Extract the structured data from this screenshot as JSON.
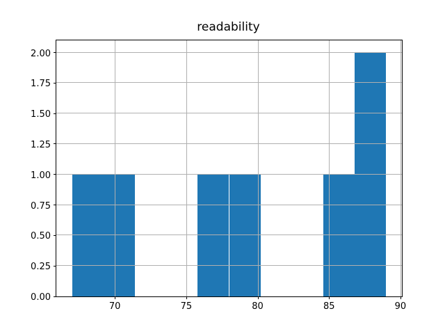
{
  "chart_data": {
    "type": "bar",
    "subtype": "histogram",
    "title": "readability",
    "xlabel": "",
    "ylabel": "",
    "bin_edges": [
      67.0,
      69.2,
      71.4,
      73.6,
      75.8,
      78.0,
      80.2,
      82.4,
      84.6,
      86.8,
      89.0
    ],
    "counts": [
      1,
      1,
      0,
      0,
      1,
      1,
      0,
      0,
      1,
      2
    ],
    "xlim": [
      65.9,
      90.1
    ],
    "ylim": [
      0,
      2.1
    ],
    "xticks": [
      70,
      75,
      80,
      85,
      90
    ],
    "xtick_labels": [
      "70",
      "75",
      "80",
      "85",
      "90"
    ],
    "yticks": [
      0.0,
      0.25,
      0.5,
      0.75,
      1.0,
      1.25,
      1.5,
      1.75,
      2.0
    ],
    "ytick_labels": [
      "0.00",
      "0.25",
      "0.50",
      "0.75",
      "1.00",
      "1.25",
      "1.50",
      "1.75",
      "2.00"
    ],
    "grid": true,
    "grid_above_bars": true,
    "legend": null,
    "bar_color": "#1f77b4",
    "grid_color": "#b0b0b0",
    "spine_color": "#000000",
    "text_color": "#000000",
    "background_color": "#ffffff"
  }
}
